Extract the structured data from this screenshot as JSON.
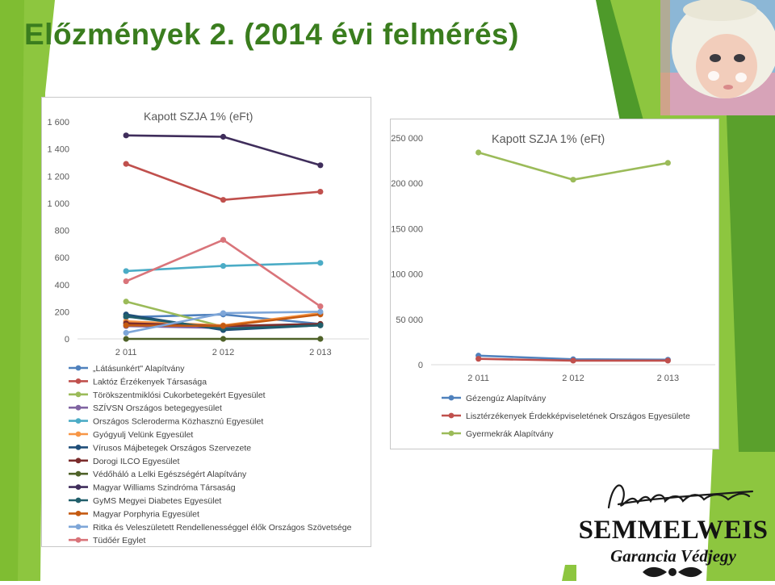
{
  "slide": {
    "title": "Előzmények 2. (2014 évi felmérés)"
  },
  "logo": {
    "word": "SEMMELWEIS",
    "sub": "Garancia Védjegy"
  },
  "colors": {
    "title_green": "#3a7d1e",
    "light_green": "#8dc63f",
    "dark_green": "#4e9a2a"
  },
  "icons": {
    "photo": "baby-photo",
    "signature": "signature-icon",
    "ornament": "ornament-icon"
  },
  "chart_data": [
    {
      "type": "line",
      "title": "Kapott SZJA 1% (eFt)",
      "categories": [
        "2 011",
        "2 012",
        "2 013"
      ],
      "ylim": [
        0,
        1600
      ],
      "yticks": [
        0,
        200,
        400,
        600,
        800,
        1000,
        1200,
        1400,
        1600
      ],
      "ytick_labels": [
        "0",
        "200",
        "400",
        "600",
        "800",
        "1 000",
        "1 200",
        "1 400",
        "1 600"
      ],
      "grid": false,
      "legend_position": "bottom",
      "series": [
        {
          "name": "„Látásunkért\" Alapítvány",
          "color": "#4f81bd",
          "values": [
            160,
            180,
            110
          ]
        },
        {
          "name": "Laktóz Érzékenyek Társasága",
          "color": "#c0504d",
          "values": [
            1290,
            1025,
            1085
          ]
        },
        {
          "name": "Törökszentmiklósi Cukorbetegekért Egyesület",
          "color": "#9bbb59",
          "values": [
            275,
            90,
            110
          ]
        },
        {
          "name": "SZÍVSN Országos betegegyesület",
          "color": "#8064a2",
          "values": [
            95,
            80,
            105
          ]
        },
        {
          "name": "Országos Scleroderma Közhasznú Egyesület",
          "color": "#4bacc6",
          "values": [
            500,
            538,
            560
          ]
        },
        {
          "name": "Gyógyulj Velünk Egyesület",
          "color": "#f79646",
          "values": [
            130,
            100,
            190
          ]
        },
        {
          "name": "Vírusos Májbetegek Országos Szervezete",
          "color": "#1f4e79",
          "values": [
            180,
            65,
            100
          ]
        },
        {
          "name": "Dorogi ILCO Egyesület",
          "color": "#7b2c2c",
          "values": [
            115,
            95,
            110
          ]
        },
        {
          "name": "Védőháló a Lelki Egészségért Alapítvány",
          "color": "#4f6228",
          "values": [
            0,
            0,
            0
          ]
        },
        {
          "name": "Magyar Williams Szindróma Társaság",
          "color": "#3f2d5b",
          "values": [
            1500,
            1490,
            1280
          ]
        },
        {
          "name": "GyMS Megyei Diabetes Egyesület",
          "color": "#215f6b",
          "values": [
            165,
            75,
            100
          ]
        },
        {
          "name": "Magyar Porphyria Egyesület",
          "color": "#c55a11",
          "values": [
            100,
            95,
            180
          ]
        },
        {
          "name": "Ritka és Veleszületett Rendellenességgel élők Országos Szövetsége",
          "color": "#7ea6d8",
          "values": [
            45,
            190,
            200
          ]
        },
        {
          "name": "Tüdőér Egylet",
          "color": "#d9747a",
          "values": [
            425,
            730,
            240
          ]
        }
      ]
    },
    {
      "type": "line",
      "title": "Kapott SZJA 1%  (eFt)",
      "categories": [
        "2 011",
        "2 012",
        "2 013"
      ],
      "ylim": [
        0,
        250000
      ],
      "yticks": [
        0,
        50000,
        100000,
        150000,
        200000,
        250000
      ],
      "ytick_labels": [
        "0",
        "50 000",
        "100 000",
        "150 000",
        "200 000",
        "250 000"
      ],
      "grid": false,
      "legend_position": "bottom",
      "series": [
        {
          "name": "Gézengúz Alapítvány",
          "color": "#4f81bd",
          "values": [
            10000,
            6000,
            5500
          ]
        },
        {
          "name": "Lisztérzékenyek Érdekképviseletének Országos Egyesülete",
          "color": "#c0504d",
          "values": [
            6500,
            4500,
            4500
          ]
        },
        {
          "name": "Gyermekrák Alapítvány",
          "color": "#9bbb59",
          "values": [
            234000,
            204000,
            222500
          ]
        }
      ]
    }
  ]
}
